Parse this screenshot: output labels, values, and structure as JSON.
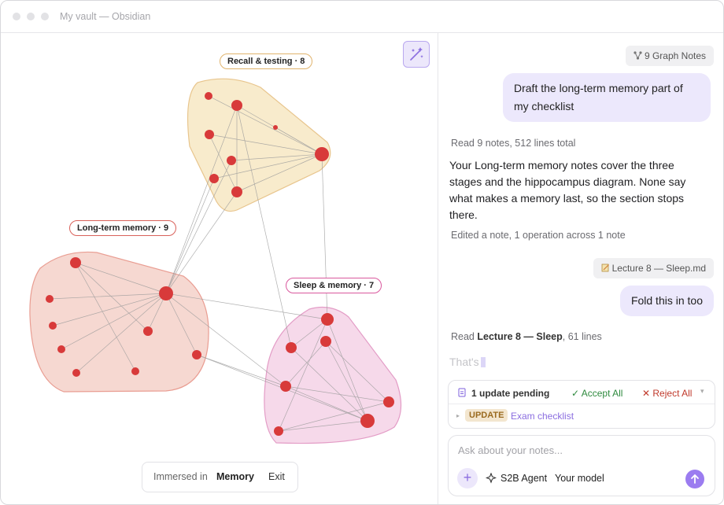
{
  "window": {
    "title": "My vault — Obsidian"
  },
  "graph": {
    "clusters": [
      {
        "label": "Recall & testing · 8"
      },
      {
        "label": "Long-term memory · 9"
      },
      {
        "label": "Sleep & memory · 7"
      }
    ],
    "footer": {
      "prefix": "Immersed in",
      "space": "Memory",
      "exit": "Exit"
    }
  },
  "chat": {
    "graph_chip": "9 Graph Notes",
    "user_1": "Draft the long-term memory part of my checklist",
    "status_1": "Read 9 notes, 512 lines total",
    "reply_1": "Your Long-term memory notes cover the three stages and the hippocampus diagram. None say what makes a memory last, so the section stops there.",
    "status_2": "Edited a note, 1 operation across 1 note",
    "file_chip": "Lecture 8 — Sleep.md",
    "user_2": "Fold this in too",
    "status_3": {
      "prefix": "Read",
      "file": "Lecture 8 — Sleep",
      "suffix": ", 61 lines"
    },
    "streaming": "That's"
  },
  "pending": {
    "summary": "1 update pending",
    "accept": "Accept All",
    "reject": "Reject All",
    "badge": "UPDATE",
    "target": "Exam checklist"
  },
  "composer": {
    "placeholder": "Ask about your notes...",
    "agent": "S2B Agent",
    "model": "Your model"
  }
}
